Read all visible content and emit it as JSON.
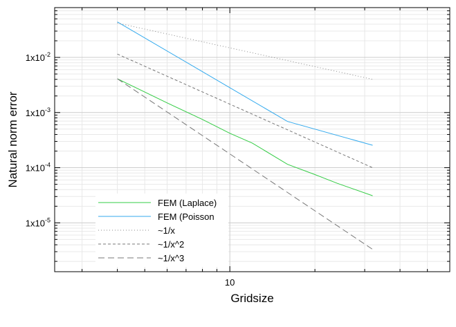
{
  "chart_data": {
    "type": "line",
    "xlabel": "Gridsize",
    "ylabel": "Natural norm error",
    "xscale": "log",
    "yscale": "log",
    "xlim": [
      2.4,
      60
    ],
    "ylim": [
      1.3e-06,
      0.08
    ],
    "grid": true,
    "legend_position": "bottom-left",
    "x_ticks": [
      {
        "value": 10,
        "label": "10"
      }
    ],
    "y_ticks": [
      {
        "value": 1e-05,
        "mantissa": "1x10",
        "exp": "-5"
      },
      {
        "value": 0.0001,
        "mantissa": "1x10",
        "exp": "-4"
      },
      {
        "value": 0.001,
        "mantissa": "1x10",
        "exp": "-3"
      },
      {
        "value": 0.01,
        "mantissa": "1x10",
        "exp": "-2"
      }
    ],
    "series": [
      {
        "name": "FEM (Laplace)",
        "color": "#33cc44",
        "dash": "solid",
        "x": [
          4,
          6,
          8,
          10,
          12,
          16,
          20,
          24,
          32
        ],
        "y": [
          0.0041,
          0.0015,
          0.00075,
          0.00042,
          0.00028,
          0.000115,
          7.5e-05,
          5.2e-05,
          3.1e-05
        ]
      },
      {
        "name": "FEM (Poisson",
        "color": "#33aaee",
        "dash": "solid",
        "x": [
          4,
          8,
          16,
          32
        ],
        "y": [
          0.044,
          0.0055,
          0.00069,
          0.000255
        ]
      },
      {
        "name": "~1/x",
        "color": "#888888",
        "dash": "dotted",
        "x": [
          4,
          32
        ],
        "y": [
          0.042,
          0.004
        ]
      },
      {
        "name": "~1/x^2",
        "color": "#777777",
        "dash": "dashed",
        "x": [
          4,
          32
        ],
        "y": [
          0.0115,
          0.0001
        ]
      },
      {
        "name": "~1/x^3",
        "color": "#777777",
        "dash": "longdash",
        "x": [
          4,
          32
        ],
        "y": [
          0.0041,
          3.3e-06
        ]
      }
    ]
  }
}
